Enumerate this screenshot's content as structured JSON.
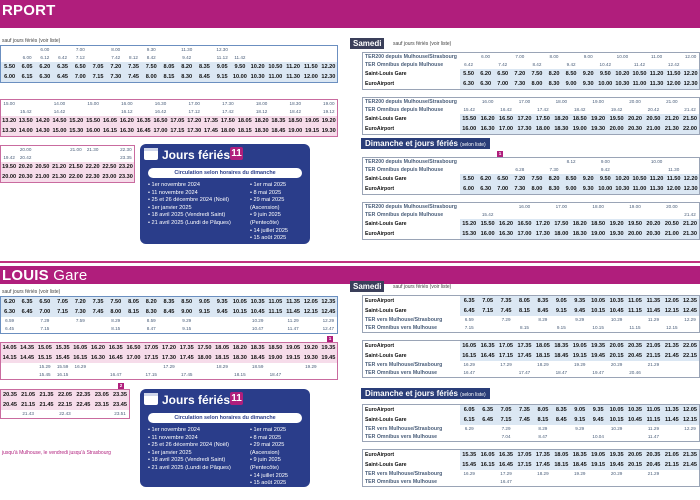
{
  "top_title": "RPORT",
  "mid_title_bold": "LOUIS",
  "mid_title_rest": " Gare",
  "sauf_jours_feries": "sauf jours fériés (voir liste)",
  "selon_liste": "(selon liste)",
  "samedi": "Samedi",
  "dimanche": "Dimanche et jours fériés",
  "jours_feries": {
    "title": "Jours fériés",
    "badge": "11",
    "subtitle": "Circulation selon horaires du dimanche",
    "left": [
      "1er novembre 2024",
      "11 novembre 2024",
      "25 et 26 décembre 2024 (Noël)",
      "1er janvier 2025",
      "18 avril 2025 (Vendredi Saint)",
      "21 avril 2025 (Lundi de Pâques)"
    ],
    "right": [
      "1er mai 2025",
      "8 mai 2025",
      "29 mai 2025 (Ascension)",
      "9 juin 2025 (Pentecôte)",
      "14 juillet 2025",
      "15 août 2025"
    ]
  },
  "left_top": {
    "b1_r1": [
      "",
      "",
      "6.00",
      "",
      "7.00",
      "",
      "8.00",
      "",
      "9.30",
      "",
      "11.30",
      "",
      "12.30"
    ],
    "b1_r2": [
      "",
      "6.00",
      "6.12",
      "6.42",
      "7.12",
      "",
      "7.42",
      "8.12",
      "8.42",
      "",
      "9.42",
      "",
      "11.12",
      "11.42"
    ],
    "b1_main1": [
      "5.50",
      "6.05",
      "6.20",
      "6.35",
      "6.50",
      "7.05",
      "7.20",
      "7.35",
      "7.50",
      "8.05",
      "8.20",
      "8.35",
      "9.05",
      "9.50",
      "10.20",
      "10.50",
      "11.20",
      "11.50",
      "12.20"
    ],
    "b1_main2": [
      "6.00",
      "6.15",
      "6.30",
      "6.45",
      "7.00",
      "7.15",
      "7.30",
      "7.45",
      "8.00",
      "8.15",
      "8.30",
      "8.45",
      "9.15",
      "10.00",
      "10.30",
      "11.00",
      "11.30",
      "12.00",
      "12.30"
    ],
    "b2_r1": [
      "15.00",
      "",
      "",
      "14.00",
      "",
      "15.00",
      "",
      "16.00",
      "",
      "16.30",
      "",
      "17.00",
      "",
      "17.30",
      "",
      "18.00",
      "",
      "18.30",
      "",
      "19.00"
    ],
    "b2_r2": [
      "",
      "15.42",
      "",
      "14.42",
      "",
      "",
      "",
      "16.12",
      "",
      "16.42",
      "",
      "17.12",
      "",
      "17.42",
      "",
      "18.12",
      "",
      "18.42",
      "",
      "19.12"
    ],
    "b2_main1": [
      "13.20",
      "13.50",
      "14.20",
      "14.50",
      "15.20",
      "15.50",
      "16.05",
      "16.20",
      "16.35",
      "16.50",
      "17.05",
      "17.20",
      "17.35",
      "17.50",
      "18.05",
      "18.20",
      "18.35",
      "18.50",
      "19.05",
      "19.20"
    ],
    "b2_main2": [
      "13.30",
      "14.00",
      "14.30",
      "15.00",
      "15.30",
      "16.00",
      "16.15",
      "16.30",
      "16.45",
      "17.00",
      "17.15",
      "17.30",
      "17.45",
      "18.00",
      "18.15",
      "18.30",
      "18.45",
      "19.00",
      "19.15",
      "19.30"
    ],
    "b3_r1": [
      "",
      "20.00",
      "",
      "",
      "21.00",
      "21.30",
      "",
      "22.30"
    ],
    "b3_r2": [
      "19.42",
      "20.42",
      "",
      "",
      "",
      "",
      "",
      "23.35"
    ],
    "b3_main1": [
      "19.50",
      "20.20",
      "20.50",
      "21.20",
      "21.50",
      "22.20",
      "22.50",
      "23.20"
    ],
    "b3_main2": [
      "20.00",
      "20.30",
      "21.00",
      "21.30",
      "22.00",
      "22.30",
      "23.00",
      "23.30"
    ]
  },
  "right_top": {
    "samedi_a": {
      "labels": [
        "TER200 depuis Mulhouse/Strasbourg",
        "TER Omnibus depuis Mulhouse",
        "Saint-Louis Gare",
        "EuroAirport"
      ],
      "r1": [
        "",
        "6.00",
        "",
        "7.00",
        "",
        "8.00",
        "",
        "9.00",
        "",
        "10.00",
        "",
        "11.00",
        "",
        "12.00"
      ],
      "r2": [
        "6.42",
        "",
        "7.42",
        "",
        "8.42",
        "",
        "9.42",
        "",
        "10.42",
        "",
        "11.42",
        "",
        "12.42",
        ""
      ],
      "main1": [
        "5.50",
        "6.20",
        "6.50",
        "7.20",
        "7.50",
        "8.20",
        "8.50",
        "9.20",
        "9.50",
        "10.20",
        "10.50",
        "11.20",
        "11.50",
        "12.20"
      ],
      "main2": [
        "6.30",
        "6.30",
        "7.00",
        "7.30",
        "8.00",
        "8.30",
        "9.00",
        "9.30",
        "10.00",
        "10.30",
        "11.00",
        "11.30",
        "12.00",
        "12.30"
      ]
    },
    "samedi_b": {
      "labels": [
        "TER200 depuis Mulhouse/Strasbourg",
        "TER Omnibus depuis Mulhouse",
        "Saint-Louis Gare",
        "EuroAirport"
      ],
      "r1": [
        "",
        "16.00",
        "",
        "17.00",
        "",
        "18.00",
        "",
        "19.00",
        "",
        "20.00",
        "",
        "21.00",
        ""
      ],
      "r2": [
        "15.42",
        "",
        "16.42",
        "",
        "17.42",
        "",
        "18.42",
        "",
        "19.42",
        "",
        "20.42",
        "",
        "21.42"
      ],
      "main1": [
        "15.50",
        "16.20",
        "16.50",
        "17.20",
        "17.50",
        "18.20",
        "18.50",
        "19.20",
        "19.50",
        "20.20",
        "20.50",
        "21.20",
        "21.50"
      ],
      "main2": [
        "16.00",
        "16.30",
        "17.00",
        "17.30",
        "18.00",
        "18.30",
        "19.00",
        "19.30",
        "20.00",
        "20.30",
        "21.00",
        "21.30",
        "22.00"
      ]
    },
    "dim_a": {
      "labels": [
        "TER200 depuis Mulhouse/Strasbourg",
        "TER Omnibus depuis Mulhouse",
        "Saint-Louis Gare",
        "EuroAirport"
      ],
      "r1": [
        "",
        "",
        "",
        "",
        "",
        "",
        "8.12",
        "",
        "9.00",
        "",
        "",
        "10.00",
        "",
        ""
      ],
      "r2": [
        "",
        "",
        "",
        "6.28",
        "",
        "7.30",
        "",
        "",
        "9.42",
        "",
        "",
        "",
        "11.30",
        ""
      ],
      "main1": [
        "5.50",
        "6.20",
        "6.50",
        "7.20",
        "7.50",
        "8.20",
        "8.50",
        "9.20",
        "9.50",
        "10.20",
        "10.50",
        "11.20",
        "11.50",
        "12.20"
      ],
      "main2": [
        "6.00",
        "6.30",
        "7.00",
        "7.30",
        "8.00",
        "8.30",
        "9.00",
        "9.30",
        "10.00",
        "10.30",
        "11.00",
        "11.30",
        "12.00",
        "12.30"
      ]
    },
    "dim_b": {
      "labels": [
        "TER200 depuis Mulhouse/Strasbourg",
        "TER Omnibus depuis Mulhouse",
        "Saint-Louis Gare",
        "EuroAirport"
      ],
      "r1": [
        "",
        "",
        "",
        "16.00",
        "",
        "17.00",
        "",
        "18.00",
        "",
        "19.00",
        "",
        "20.00",
        ""
      ],
      "r2": [
        "",
        "15.42",
        "",
        "",
        "",
        "",
        "",
        "",
        "",
        "",
        "",
        "",
        "21.42"
      ],
      "main1": [
        "15.20",
        "15.50",
        "16.20",
        "16.50",
        "17.20",
        "17.50",
        "18.20",
        "18.50",
        "19.20",
        "19.50",
        "20.20",
        "20.50",
        "21.20"
      ],
      "main2": [
        "15.30",
        "16.00",
        "16.30",
        "17.00",
        "17.30",
        "18.00",
        "18.30",
        "19.00",
        "19.30",
        "20.00",
        "20.30",
        "21.00",
        "21.30"
      ]
    }
  },
  "left_bottom": {
    "b1_main1": [
      "6.20",
      "6.35",
      "6.50",
      "7.05",
      "7.20",
      "7.35",
      "7.50",
      "8.05",
      "8.20",
      "8.35",
      "8.50",
      "9.05",
      "9.35",
      "10.05",
      "10.35",
      "11.05",
      "11.35",
      "12.05",
      "12.35"
    ],
    "b1_main2": [
      "6.30",
      "6.45",
      "7.00",
      "7.15",
      "7.30",
      "7.45",
      "8.00",
      "8.15",
      "8.30",
      "8.45",
      "9.00",
      "9.15",
      "9.45",
      "10.15",
      "10.45",
      "11.15",
      "11.45",
      "12.15",
      "12.45"
    ],
    "b1_r1": [
      "6.59",
      "",
      "7.29",
      "",
      "7.59",
      "",
      "8.29",
      "",
      "8.59",
      "",
      "9.29",
      "",
      "",
      "",
      "10.29",
      "",
      "11.29",
      "",
      "12.29"
    ],
    "b1_r2": [
      "6.45",
      "",
      "7.15",
      "",
      "",
      "",
      "8.15",
      "",
      "8.47",
      "",
      "9.15",
      "",
      "",
      "",
      "10.47",
      "",
      "11.47",
      "",
      "12.47"
    ],
    "b2_main1": [
      "14.05",
      "14.35",
      "15.05",
      "15.35",
      "16.05",
      "16.20",
      "16.35",
      "16.50",
      "17.05",
      "17.20",
      "17.35",
      "17.50",
      "18.05",
      "18.20",
      "18.35",
      "18.50",
      "19.05",
      "19.20",
      "19.35"
    ],
    "b2_main2": [
      "14.15",
      "14.45",
      "15.15",
      "15.45",
      "16.15",
      "16.30",
      "16.45",
      "17.00",
      "17.15",
      "17.30",
      "17.45",
      "18.00",
      "18.15",
      "18.30",
      "18.45",
      "19.00",
      "19.15",
      "19.30",
      "19.45"
    ],
    "b2_r1": [
      "",
      "",
      "15.29",
      "15.59",
      "16.29",
      "",
      "",
      "",
      "",
      "17.29",
      "",
      "",
      "18.29",
      "",
      "18.59",
      "",
      "",
      "19.29",
      ""
    ],
    "b2_r2": [
      "",
      "",
      "15.45",
      "16.15",
      "",
      "",
      "16.47",
      "",
      "17.15",
      "",
      "17.45",
      "",
      "",
      "18.15",
      "",
      "18.47",
      "",
      "",
      ""
    ],
    "b3_main1": [
      "20.35",
      "21.05",
      "21.35",
      "22.05",
      "22.35",
      "23.05",
      "23.35"
    ],
    "b3_main2": [
      "20.45",
      "21.15",
      "21.45",
      "22.15",
      "22.45",
      "23.15",
      "23.45"
    ],
    "b3_r1": [
      "",
      "21.43",
      "",
      "22.43",
      "",
      "",
      "23.51"
    ],
    "note": "jusqu'à Mulhouse, le vendredi jusqu'à Strasbourg"
  },
  "right_bottom": {
    "samedi_a": {
      "labels": [
        "EuroAirport",
        "Saint-Louis Gare",
        "TER vers Mulhouse/Strasbourg",
        "TER Omnibus vers Mulhouse"
      ],
      "main1": [
        "6.35",
        "7.05",
        "7.35",
        "8.05",
        "8.35",
        "9.05",
        "9.35",
        "10.05",
        "10.35",
        "11.05",
        "11.35",
        "12.05",
        "12.35"
      ],
      "main2": [
        "6.45",
        "7.15",
        "7.45",
        "8.15",
        "8.45",
        "9.15",
        "9.45",
        "10.15",
        "10.45",
        "11.15",
        "11.45",
        "12.15",
        "12.45"
      ],
      "r1": [
        "6.59",
        "",
        "7.29",
        "",
        "8.29",
        "",
        "9.29",
        "",
        "10.29",
        "",
        "11.29",
        "",
        "12.29"
      ],
      "r2": [
        "7.15",
        "",
        "",
        "8.15",
        "",
        "9.15",
        "",
        "10.15",
        "",
        "11.15",
        "",
        "12.15",
        ""
      ]
    },
    "samedi_b": {
      "labels": [
        "EuroAirport",
        "Saint-Louis Gare",
        "TER vers Mulhouse/Strasbourg",
        "TER Omnibus vers Mulhouse"
      ],
      "main1": [
        "16.05",
        "16.35",
        "17.05",
        "17.35",
        "18.05",
        "18.35",
        "19.05",
        "19.35",
        "20.05",
        "20.35",
        "21.05",
        "21.35",
        "22.05"
      ],
      "main2": [
        "16.15",
        "16.45",
        "17.15",
        "17.45",
        "18.15",
        "18.45",
        "19.15",
        "19.45",
        "20.15",
        "20.45",
        "21.15",
        "21.45",
        "22.15"
      ],
      "r1": [
        "16.29",
        "",
        "17.29",
        "",
        "18.29",
        "",
        "19.29",
        "",
        "20.29",
        "",
        "21.29",
        "",
        ""
      ],
      "r2": [
        "16.47",
        "",
        "",
        "17.47",
        "",
        "18.47",
        "",
        "19.47",
        "",
        "20.46",
        "",
        "",
        ""
      ]
    },
    "dim_a": {
      "labels": [
        "EuroAirport",
        "Saint-Louis Gare",
        "TER vers Mulhouse/Strasbourg",
        "TER Omnibus vers Mulhouse"
      ],
      "main1": [
        "6.05",
        "6.35",
        "7.05",
        "7.35",
        "8.05",
        "8.35",
        "9.05",
        "9.35",
        "10.05",
        "10.35",
        "11.05",
        "11.35",
        "12.05"
      ],
      "main2": [
        "6.15",
        "6.45",
        "7.15",
        "7.45",
        "8.15",
        "8.45",
        "9.15",
        "9.45",
        "10.15",
        "10.45",
        "11.15",
        "11.45",
        "12.15"
      ],
      "r1": [
        "6.29",
        "",
        "7.29",
        "",
        "8.29",
        "",
        "9.29",
        "",
        "10.29",
        "",
        "11.29",
        "",
        "12.29"
      ],
      "r2": [
        "",
        "",
        "7.04",
        "",
        "8.47",
        "",
        "",
        "10.04",
        "",
        "",
        "11.47",
        "",
        ""
      ]
    },
    "dim_b": {
      "labels": [
        "EuroAirport",
        "Saint-Louis Gare",
        "TER vers Mulhouse/Strasbourg",
        "TER Omnibus vers Mulhouse"
      ],
      "main1": [
        "15.35",
        "16.05",
        "16.35",
        "17.05",
        "17.35",
        "18.05",
        "18.35",
        "19.05",
        "19.35",
        "20.05",
        "20.35",
        "21.05",
        "21.35"
      ],
      "main2": [
        "15.45",
        "16.15",
        "16.45",
        "17.15",
        "17.45",
        "18.15",
        "18.45",
        "19.15",
        "19.45",
        "20.15",
        "20.45",
        "21.15",
        "21.45"
      ],
      "r1": [
        "16.29",
        "",
        "17.29",
        "",
        "18.29",
        "",
        "19.29",
        "",
        "20.29",
        "",
        "21.29",
        "",
        ""
      ],
      "r2": [
        "",
        "",
        "16.47",
        "",
        "",
        "",
        "",
        "",
        "",
        "",
        "",
        "",
        ""
      ]
    }
  }
}
